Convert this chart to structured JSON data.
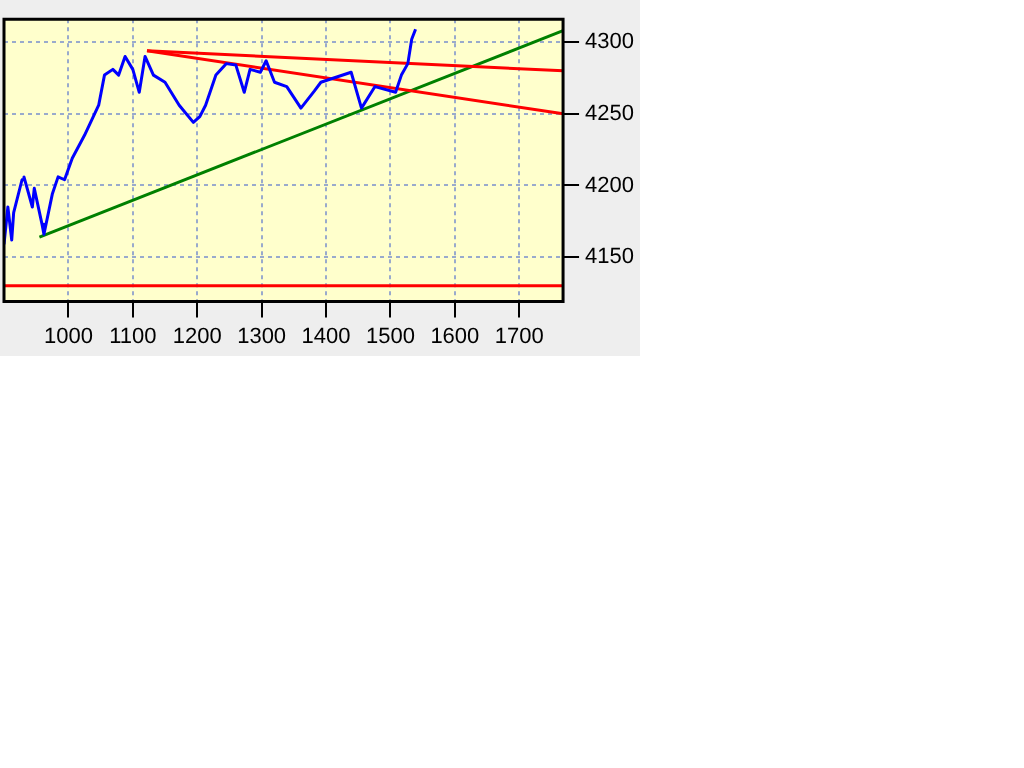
{
  "chart_data": {
    "type": "line",
    "xlim": [
      900,
      1768
    ],
    "ylim": [
      4119,
      4316
    ],
    "xticks": [
      1000,
      1100,
      1200,
      1300,
      1400,
      1500,
      1600,
      1700
    ],
    "yticks": [
      4150,
      4200,
      4250,
      4300
    ],
    "grid": true,
    "legend": false,
    "marker": "none",
    "line_style": "solid",
    "series": [
      {
        "color": "#0000ff",
        "x": [
          900,
          906,
          912,
          915,
          928,
          931,
          944,
          947,
          959,
          962,
          975,
          984,
          994,
          1006,
          1025,
          1047,
          1056,
          1069,
          1078,
          1088,
          1100,
          1110,
          1119,
          1132,
          1150,
          1172,
          1194,
          1204,
          1213,
          1229,
          1245,
          1260,
          1273,
          1282,
          1298,
          1307,
          1320,
          1339,
          1361,
          1382,
          1392,
          1439,
          1455,
          1476,
          1508,
          1517,
          1527,
          1533,
          1539
        ],
        "values": [
          4159,
          4185,
          4162,
          4181,
          4204,
          4206,
          4185,
          4198,
          4173,
          4166,
          4194,
          4206,
          4204,
          4219,
          4235,
          4256,
          4277,
          4281,
          4277,
          4290,
          4281,
          4265,
          4290,
          4277,
          4272,
          4256,
          4244,
          4248,
          4256,
          4277,
          4285,
          4284,
          4265,
          4281,
          4279,
          4287,
          4272,
          4269,
          4254,
          4266,
          4272,
          4279,
          4254,
          4269,
          4265,
          4277,
          4285,
          4302,
          4309
        ]
      },
      {
        "color": "#ff0000",
        "x": [
          1122,
          1768
        ],
        "values": [
          4294,
          4280
        ]
      },
      {
        "color": "#ff0000",
        "x": [
          1122,
          1768
        ],
        "values": [
          4294,
          4250
        ]
      },
      {
        "color": "#008000",
        "x": [
          955,
          1768
        ],
        "values": [
          4164,
          4308
        ]
      }
    ],
    "ref_lines": [
      {
        "axis": "y",
        "value": 4130,
        "color": "#ff0000"
      }
    ]
  }
}
